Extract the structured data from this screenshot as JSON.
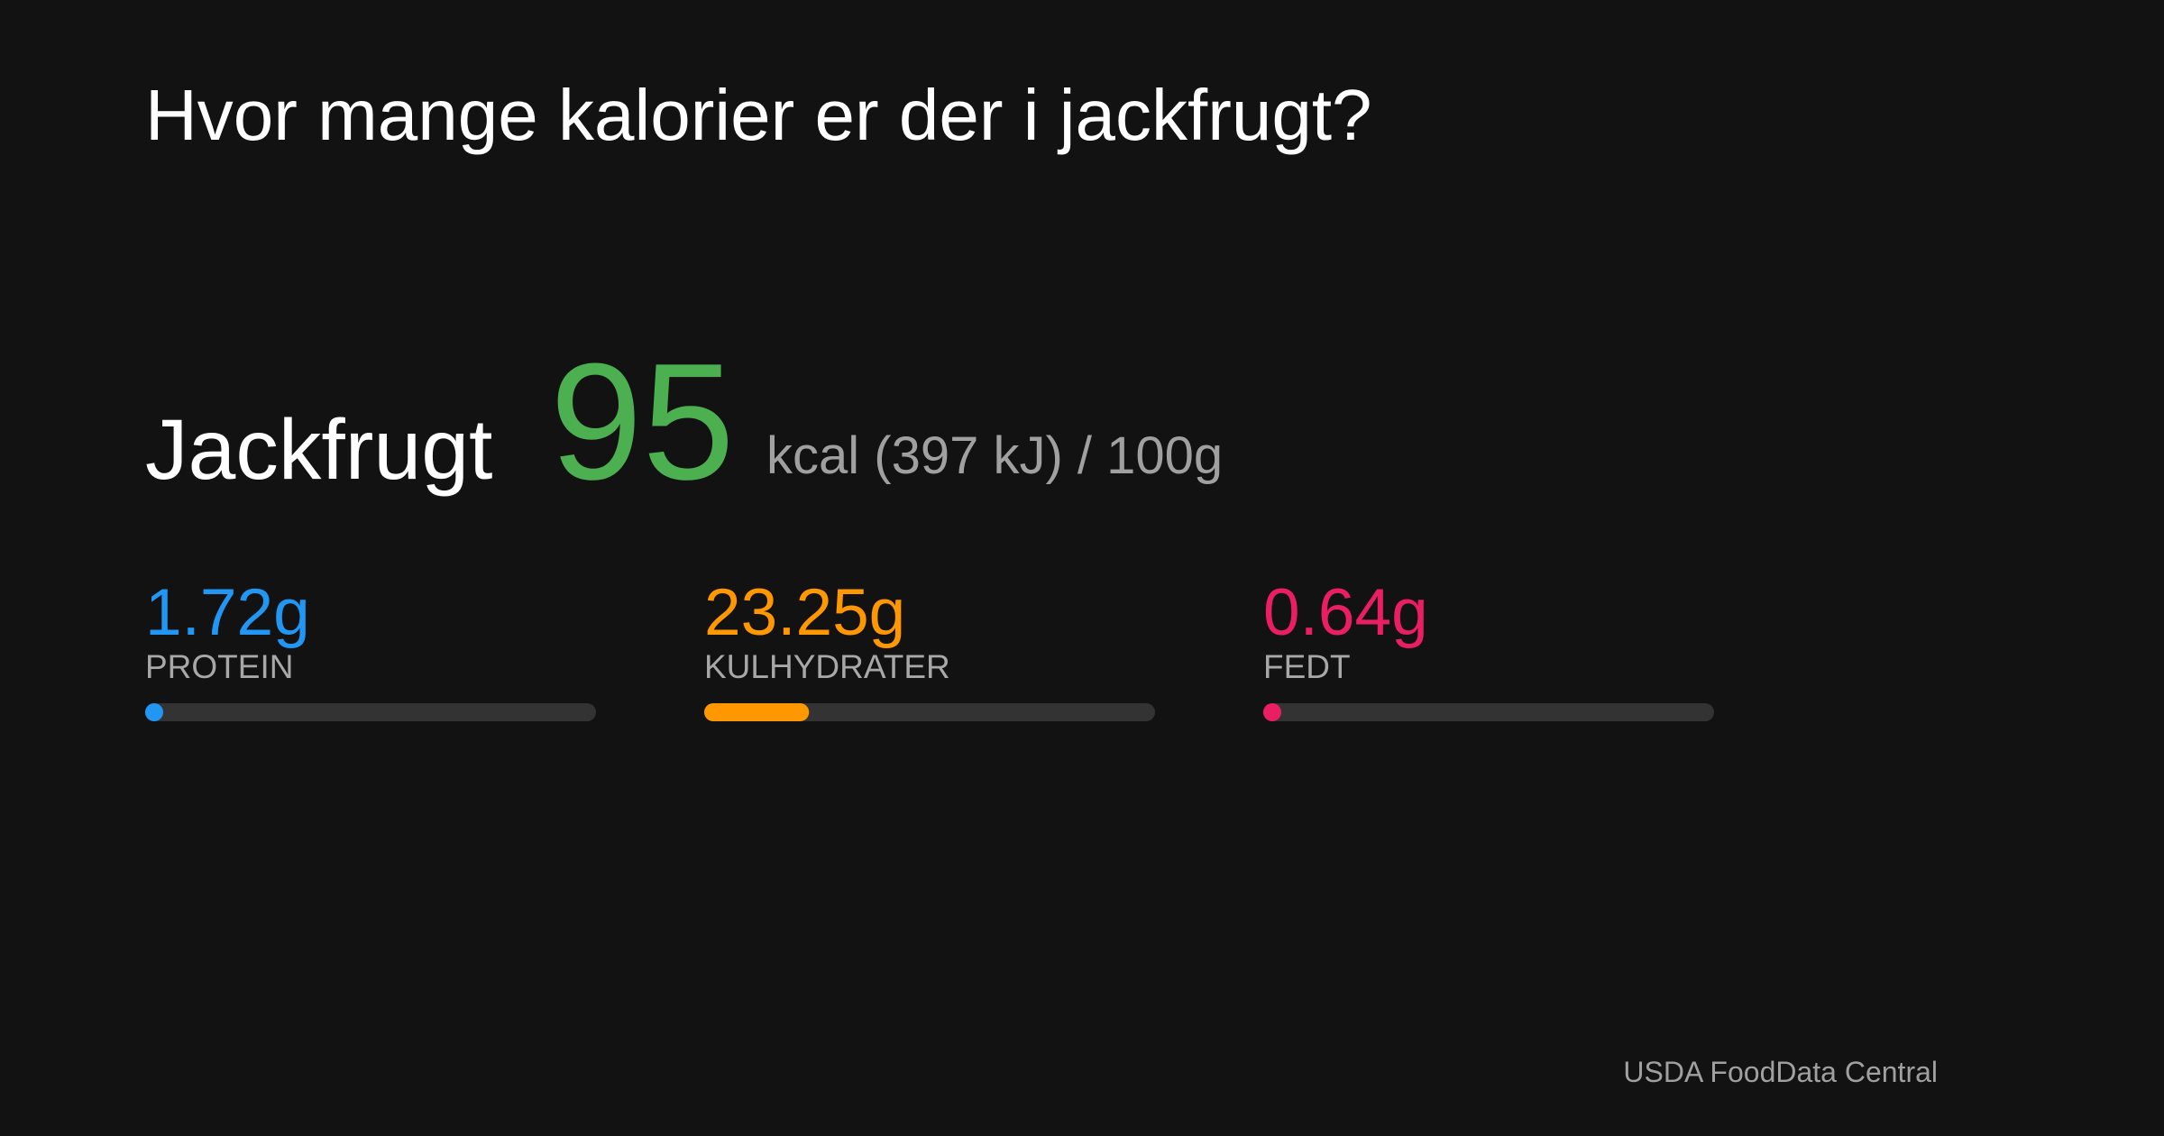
{
  "title": "Hvor mange kalorier er der i jackfrugt?",
  "food": {
    "name": "Jackfrugt",
    "kcal": 95,
    "unit_text": "kcal (397 kJ) / ",
    "serving": 100,
    "serving_unit": "g",
    "kcal_color": "#4caf50"
  },
  "macros": [
    {
      "value": 1.72,
      "value_label": "1.72g",
      "label": "PROTEIN",
      "color": "#2196f3"
    },
    {
      "value": 23.25,
      "value_label": "23.25g",
      "label": "KULHYDRATER",
      "color": "#ff9800"
    },
    {
      "value": 0.64,
      "value_label": "0.64g",
      "label": "FEDT",
      "color": "#e91e63"
    }
  ],
  "source": "USDA FoodData Central"
}
